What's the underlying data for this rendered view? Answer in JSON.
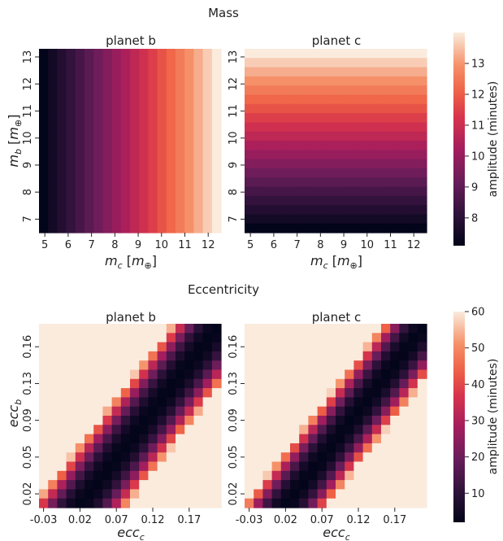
{
  "chart_data": [
    {
      "type": "heatmap",
      "group_title": "Mass",
      "title": "planet b",
      "xlabel": "m_c [m_⊕]",
      "ylabel": "m_b [m_⊕]",
      "xlim": [
        4.75,
        12.55
      ],
      "ylim": [
        6.5,
        13.3
      ],
      "xticks": [
        5,
        6,
        7,
        8,
        9,
        10,
        11,
        12
      ],
      "yticks": [
        7,
        8,
        9,
        10,
        11,
        12,
        13
      ],
      "pattern": "varies with x: amplitude rises from ~7 min at m_c=4.75 to ~14 min at m_c=12.55",
      "amplitude_range": [
        7.1,
        14.0
      ]
    },
    {
      "type": "heatmap",
      "group_title": "Mass",
      "title": "planet c",
      "xlabel": "m_c [m_⊕]",
      "ylabel": "",
      "xlim": [
        4.75,
        12.55
      ],
      "ylim": [
        6.5,
        13.3
      ],
      "xticks": [
        5,
        6,
        7,
        8,
        9,
        10,
        11,
        12
      ],
      "yticks": [
        7,
        8,
        9,
        10,
        11,
        12,
        13
      ],
      "pattern": "varies with y: amplitude rises from ~7 min at m_b=6.5 to ~14 min at m_b=13.3",
      "amplitude_range": [
        7.1,
        14.0
      ]
    },
    {
      "type": "heatmap",
      "group_title": "Eccentricity",
      "title": "planet b",
      "xlabel": "ecc_c",
      "ylabel": "ecc_b",
      "xtick_labels": [
        "-0.03",
        "0.02",
        "0.07",
        "0.12",
        "0.17"
      ],
      "ytick_labels": [
        "0.02",
        "0.05",
        "0.09",
        "0.13",
        "0.16"
      ],
      "pattern": "dark diagonal valley where ecc_c ≈ ecc_b offset; saturates to 60 min away from it",
      "amplitude_range": [
        2,
        60
      ]
    },
    {
      "type": "heatmap",
      "group_title": "Eccentricity",
      "title": "planet c",
      "xlabel": "ecc_c",
      "ylabel": "",
      "xtick_labels": [
        "-0.03",
        "0.02",
        "0.07",
        "0.12",
        "0.17"
      ],
      "ytick_labels": [
        "0.02",
        "0.05",
        "0.09",
        "0.13",
        "0.16"
      ],
      "pattern": "dark diagonal valley, slightly narrower than planet b; saturates to 60 min",
      "amplitude_range": [
        2,
        60
      ]
    }
  ],
  "colorbars": [
    {
      "label": "amplitude (minutes)",
      "ticks": [
        8,
        9,
        10,
        11,
        12,
        13
      ],
      "range": [
        7.1,
        14.0
      ]
    },
    {
      "label": "amplitude (minutes)",
      "ticks": [
        10,
        20,
        30,
        40,
        50,
        60
      ],
      "range": [
        2,
        60
      ]
    }
  ],
  "text": {
    "mass_title": "Mass",
    "ecc_title": "Eccentricity",
    "planet_b": "planet b",
    "planet_c": "planet c",
    "cbar_label": "amplitude (minutes)"
  }
}
